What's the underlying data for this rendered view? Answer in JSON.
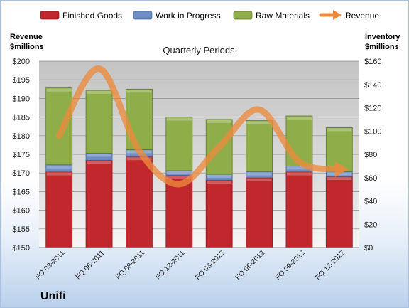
{
  "chart_data": {
    "type": "bar",
    "subtitle": "Quarterly Periods",
    "company": "Unifi",
    "left_axis": {
      "title_line1": "Revenue",
      "title_line2": "$millions",
      "min": 150,
      "max": 200,
      "step": 5,
      "prefix": "$"
    },
    "right_axis": {
      "title_line1": "Inventory",
      "title_line2": "$millions",
      "min": 0,
      "max": 160,
      "step": 20,
      "prefix": "$"
    },
    "categories": [
      "FQ 03-2011",
      "FQ 06-2011",
      "FQ 09-2011",
      "FQ 12-2011",
      "FQ 03-2012",
      "FQ 06-2012",
      "FQ 09-2012",
      "FQ 12-2012"
    ],
    "series": [
      {
        "name": "Finished Goods",
        "axis": "right",
        "stack": true,
        "color": "#c0282d",
        "values": [
          65,
          75,
          78,
          62,
          58,
          60,
          65,
          61
        ]
      },
      {
        "name": "Work in Progress",
        "axis": "right",
        "stack": true,
        "color": "#6f8fc4",
        "values": [
          6,
          6,
          6,
          4,
          5,
          5,
          5,
          4
        ]
      },
      {
        "name": "Raw Materials",
        "axis": "right",
        "stack": true,
        "color": "#8fae4a",
        "values": [
          66,
          54,
          52,
          46,
          47,
          44,
          43,
          38
        ]
      },
      {
        "name": "Revenue",
        "axis": "left",
        "type": "line",
        "color": "#ec8a3c",
        "values": [
          180,
          198,
          176,
          167,
          177,
          187,
          173,
          171
        ]
      }
    ],
    "legend_position": "top",
    "grid": true
  }
}
